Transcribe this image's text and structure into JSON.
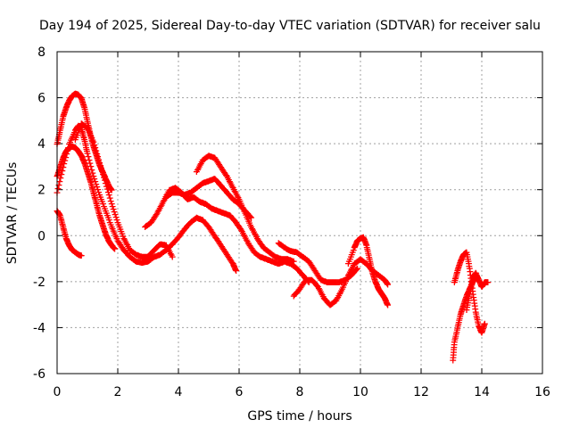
{
  "chart_data": {
    "type": "scatter",
    "title": "Day 194 of 2025, Sidereal Day-to-day VTEC variation (SDTVAR) for receiver salu",
    "xlabel": "GPS time / hours",
    "ylabel": "SDTVAR / TECUs",
    "xlim": [
      0,
      16
    ],
    "ylim": [
      -6,
      8
    ],
    "xticks": [
      0,
      2,
      4,
      6,
      8,
      10,
      12,
      14,
      16
    ],
    "yticks": [
      -6,
      -4,
      -2,
      0,
      2,
      4,
      6,
      8
    ],
    "grid": true,
    "marker": "+",
    "color": "#ff0000",
    "series": [
      {
        "x": [
          0.0,
          0.1,
          0.2,
          0.3,
          0.4,
          0.5,
          0.6,
          0.7,
          0.8
        ],
        "y": [
          1.1,
          0.9,
          0.4,
          -0.1,
          -0.4,
          -0.6,
          -0.7,
          -0.8,
          -0.85
        ]
      },
      {
        "x": [
          0.0,
          0.1,
          0.2,
          0.3,
          0.4,
          0.5,
          0.6,
          0.7,
          0.8,
          0.9,
          1.0,
          1.1,
          1.2,
          1.3,
          1.4,
          1.5,
          1.6,
          1.7,
          1.8,
          1.9
        ],
        "y": [
          2.6,
          3.0,
          3.4,
          3.7,
          3.85,
          3.9,
          3.85,
          3.7,
          3.5,
          3.2,
          2.8,
          2.4,
          1.9,
          1.4,
          0.9,
          0.5,
          0.1,
          -0.2,
          -0.4,
          -0.55
        ]
      },
      {
        "x": [
          0.0,
          0.1,
          0.2,
          0.3,
          0.4,
          0.5,
          0.6,
          0.7,
          0.8,
          0.9,
          1.0,
          1.1,
          1.2,
          1.3,
          1.4,
          1.5,
          1.6,
          1.7,
          1.8
        ],
        "y": [
          4.0,
          4.6,
          5.2,
          5.6,
          5.9,
          6.1,
          6.2,
          6.15,
          6.0,
          5.6,
          5.0,
          4.4,
          3.9,
          3.5,
          3.1,
          2.8,
          2.5,
          2.2,
          2.0
        ]
      },
      {
        "x": [
          0.0,
          0.2,
          0.4,
          0.6,
          0.7,
          0.8,
          0.9,
          1.0,
          1.2,
          1.4,
          1.6,
          1.8,
          2.0,
          2.2,
          2.4,
          2.6,
          2.8,
          3.0,
          3.2,
          3.4,
          3.6,
          3.8,
          4.0,
          4.2,
          4.4,
          4.6,
          4.8,
          5.0,
          5.2,
          5.4,
          5.6,
          5.8,
          5.9
        ],
        "y": [
          1.9,
          3.0,
          4.0,
          4.6,
          4.8,
          4.7,
          4.2,
          3.6,
          2.6,
          1.8,
          1.1,
          0.4,
          -0.2,
          -0.6,
          -0.9,
          -1.1,
          -1.15,
          -1.1,
          -0.9,
          -0.8,
          -0.6,
          -0.35,
          -0.05,
          0.3,
          0.6,
          0.8,
          0.7,
          0.4,
          0.0,
          -0.4,
          -0.8,
          -1.2,
          -1.5
        ]
      },
      {
        "x": [
          0.6,
          0.8,
          1.0,
          1.2,
          1.4,
          1.6,
          1.8,
          2.0,
          2.2,
          2.4,
          2.6,
          2.8,
          3.0,
          3.2,
          3.4,
          3.6,
          3.8
        ],
        "y": [
          4.2,
          4.9,
          4.7,
          4.1,
          3.2,
          2.3,
          1.4,
          0.6,
          -0.1,
          -0.6,
          -0.8,
          -0.9,
          -0.9,
          -0.6,
          -0.35,
          -0.4,
          -0.9
        ]
      },
      {
        "x": [
          2.9,
          3.1,
          3.3,
          3.5,
          3.7,
          3.9,
          4.1,
          4.3,
          4.5,
          4.7,
          4.9,
          5.1,
          5.3,
          5.5,
          5.7,
          5.9,
          6.1,
          6.3,
          6.5,
          6.7,
          6.9,
          7.1,
          7.3,
          7.5,
          7.7,
          7.9,
          8.1,
          8.3
        ],
        "y": [
          0.4,
          0.6,
          1.0,
          1.5,
          2.0,
          2.1,
          1.9,
          1.6,
          1.7,
          1.5,
          1.4,
          1.2,
          1.1,
          1.0,
          0.9,
          0.6,
          0.2,
          -0.3,
          -0.7,
          -0.9,
          -1.0,
          -1.1,
          -1.2,
          -1.1,
          -1.2,
          -1.4,
          -1.7,
          -2.0
        ]
      },
      {
        "x": [
          4.6,
          4.8,
          5.0,
          5.2,
          5.4,
          5.6,
          5.8,
          6.0,
          6.2,
          6.4,
          6.6,
          6.8,
          7.0,
          7.2,
          7.4,
          7.6,
          7.8
        ],
        "y": [
          2.8,
          3.3,
          3.5,
          3.4,
          3.0,
          2.6,
          2.1,
          1.6,
          1.0,
          0.4,
          -0.1,
          -0.5,
          -0.7,
          -0.9,
          -1.0,
          -1.0,
          -1.1
        ]
      },
      {
        "x": [
          3.6,
          3.8,
          4.0,
          4.2,
          4.4,
          4.6,
          4.8,
          5.0,
          5.2,
          5.4,
          5.6,
          5.8,
          6.0,
          6.2,
          6.4
        ],
        "y": [
          1.7,
          1.9,
          1.9,
          1.8,
          1.9,
          2.1,
          2.3,
          2.4,
          2.5,
          2.2,
          1.9,
          1.6,
          1.4,
          1.1,
          0.8
        ]
      },
      {
        "x": [
          7.3,
          7.5,
          7.7,
          7.9,
          8.1,
          8.3,
          8.5,
          8.7,
          8.9,
          9.1,
          9.3,
          9.5,
          9.7,
          9.9
        ],
        "y": [
          -0.3,
          -0.5,
          -0.65,
          -0.7,
          -0.9,
          -1.1,
          -1.5,
          -1.9,
          -2.0,
          -2.0,
          -2.0,
          -1.9,
          -1.7,
          -1.4
        ]
      },
      {
        "x": [
          7.8,
          8.0,
          8.2,
          8.4,
          8.6,
          8.8,
          9.0,
          9.2,
          9.4,
          9.6,
          9.8,
          10.0,
          10.2,
          10.4,
          10.6,
          10.8,
          10.9
        ],
        "y": [
          -2.6,
          -2.3,
          -1.9,
          -1.9,
          -2.2,
          -2.7,
          -3.0,
          -2.8,
          -2.3,
          -1.7,
          -1.2,
          -1.0,
          -1.2,
          -1.5,
          -1.7,
          -1.9,
          -2.1
        ]
      },
      {
        "x": [
          9.6,
          9.8,
          9.9,
          10.0,
          10.1,
          10.2,
          10.3,
          10.4,
          10.5,
          10.6,
          10.7,
          10.8,
          10.9
        ],
        "y": [
          -1.2,
          -0.5,
          -0.2,
          -0.1,
          -0.05,
          -0.4,
          -1.0,
          -1.6,
          -2.0,
          -2.3,
          -2.5,
          -2.7,
          -3.0
        ]
      },
      {
        "x": [
          13.05,
          13.1,
          13.2,
          13.3,
          13.4,
          13.5,
          13.6,
          13.7,
          13.8
        ],
        "y": [
          -5.4,
          -4.6,
          -4.0,
          -3.4,
          -3.0,
          -2.6,
          -2.3,
          -2.0,
          -1.8
        ]
      },
      {
        "x": [
          13.1,
          13.2,
          13.3,
          13.4,
          13.5,
          13.6,
          13.7,
          13.8,
          13.9,
          14.0,
          14.1
        ],
        "y": [
          -2.0,
          -1.5,
          -1.1,
          -0.8,
          -0.7,
          -1.4,
          -2.4,
          -3.3,
          -3.9,
          -4.2,
          -3.8
        ]
      },
      {
        "x": [
          13.5,
          13.6,
          13.7,
          13.8,
          13.9,
          14.0,
          14.1,
          14.2
        ],
        "y": [
          -3.2,
          -2.5,
          -1.8,
          -1.6,
          -1.9,
          -2.2,
          -2.0,
          -2.0
        ]
      }
    ]
  }
}
